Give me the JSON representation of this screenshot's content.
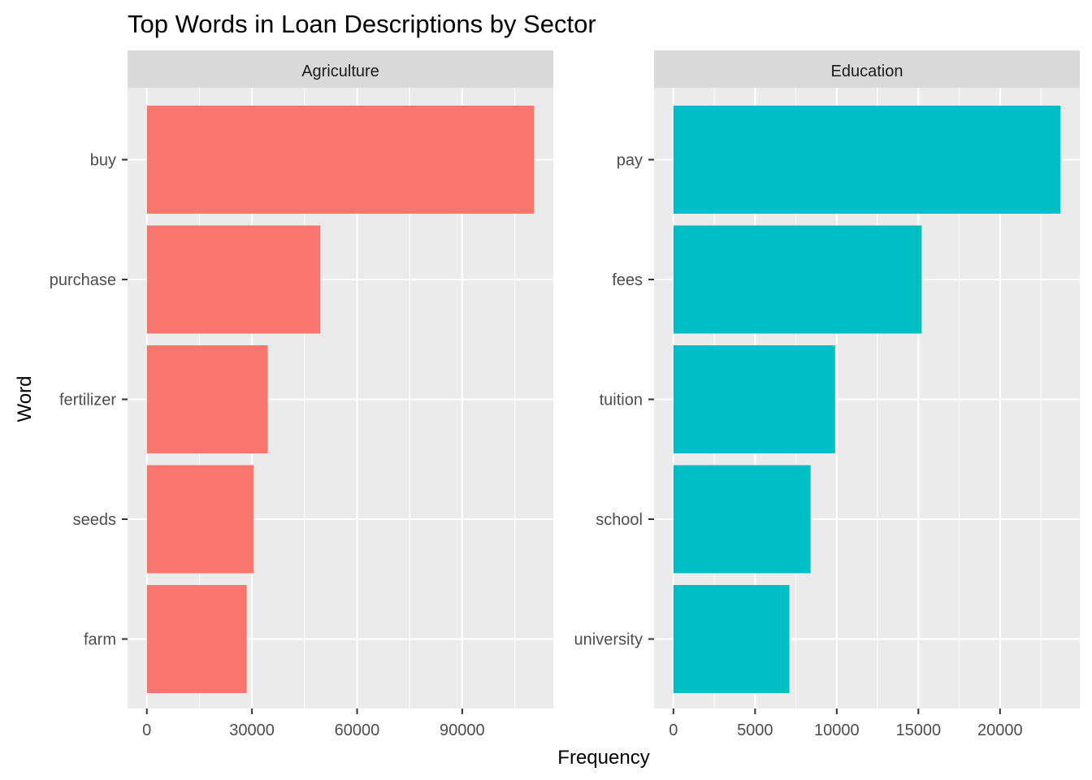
{
  "chart_data": {
    "type": "bar",
    "orientation": "horizontal",
    "title": "Top Words in Loan Descriptions by Sector",
    "xlabel": "Frequency",
    "ylabel": "Word",
    "grid": true,
    "legend": "none",
    "facets": [
      {
        "name": "Agriculture",
        "color": "#F8766D",
        "categories": [
          "buy",
          "purchase",
          "fertilizer",
          "seeds",
          "farm"
        ],
        "values": [
          110500,
          49500,
          34500,
          30500,
          28500
        ],
        "xlim": [
          -5500,
          116000
        ],
        "xticks": [
          0,
          30000,
          60000,
          90000
        ],
        "xtick_labels": [
          "0",
          "30000",
          "60000",
          "90000"
        ]
      },
      {
        "name": "Education",
        "color": "#00BFC4",
        "categories": [
          "pay",
          "fees",
          "tuition",
          "school",
          "university"
        ],
        "values": [
          23700,
          15200,
          9900,
          8400,
          7100
        ],
        "xlim": [
          -1185,
          24885
        ],
        "xticks": [
          0,
          5000,
          10000,
          15000,
          20000
        ],
        "xtick_labels": [
          "0",
          "5000",
          "10000",
          "15000",
          "20000"
        ]
      }
    ]
  }
}
